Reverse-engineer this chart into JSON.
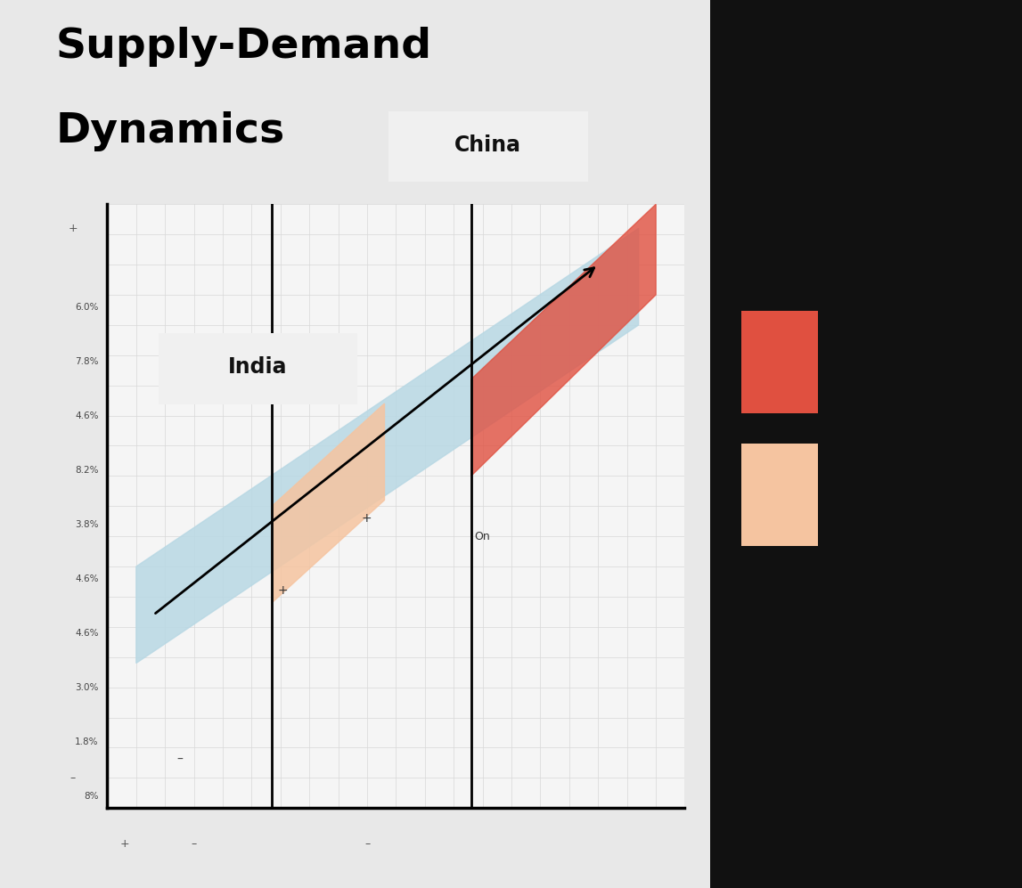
{
  "title_line1": "Supply-Demand",
  "title_line2": "Dynamics",
  "title_fontsize": 34,
  "title_color": "#000000",
  "background_color": "#e0e0e0",
  "plot_bg_color": "#f5f5f5",
  "ytick_labels": [
    "8%",
    "1.8%",
    "3.0%",
    "4.6%",
    "4.6%",
    "3.8%",
    "8.2%",
    "4.6%",
    "7.8%",
    "6.0%"
  ],
  "china_label": "China",
  "india_label": "India",
  "china_color": "#e05040",
  "india_color": "#f5c4a0",
  "band_color": "#b8d8e4",
  "band_alpha": 0.85,
  "arrow_color": "#000000",
  "grid_color": "#d8d8d8",
  "plus_minus_color": "#555555",
  "on_label": "On",
  "right_black": "#111111",
  "swatch_china_color": "#e05040",
  "swatch_india_color": "#f5c4a0"
}
